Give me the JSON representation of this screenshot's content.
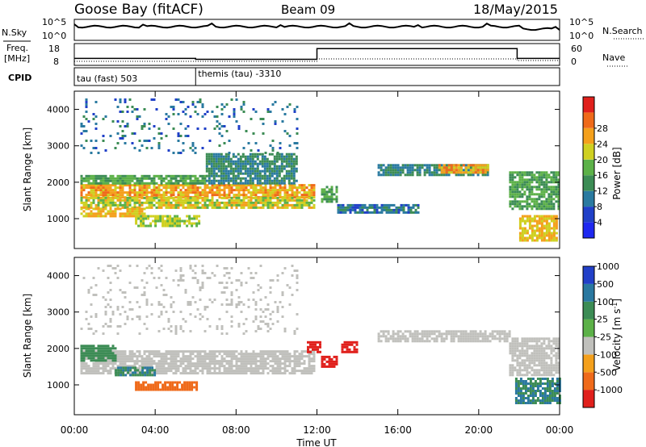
{
  "header": {
    "station": "Goose Bay (fitACF)",
    "beam": "Beam 09",
    "date": "18/May/2015"
  },
  "noise_panel": {
    "left_label": "N.Sky",
    "right_label": "N.Search",
    "left_ticks": [
      "10^5",
      "10^0"
    ],
    "right_ticks": [
      "10^5",
      "10^0"
    ]
  },
  "freq_panel": {
    "left_label_line1": "Freq.",
    "left_label_line2": "[MHz]",
    "right_label": "Nave",
    "left_ticks": [
      "18",
      "8"
    ],
    "right_ticks": [
      "60",
      "0"
    ]
  },
  "cpid_panel": {
    "label": "CPID",
    "modes": [
      {
        "name": "tau (fast) 503",
        "start_hour": 0
      },
      {
        "name": "themis (tau) -3310",
        "start_hour": 6
      }
    ]
  },
  "axes": {
    "ylabel": "Slant Range [km]",
    "xlabel": "Time UT",
    "y_ticks": [
      "1000",
      "2000",
      "3000",
      "4000"
    ],
    "x_ticks": [
      "00:00",
      "04:00",
      "08:00",
      "12:00",
      "16:00",
      "20:00",
      "00:00"
    ]
  },
  "power_colorbar": {
    "title": "Power [dB]",
    "labels": [
      "4",
      "8",
      "12",
      "16",
      "20",
      "24",
      "28"
    ],
    "colors": [
      "#1e28f0",
      "#2040c8",
      "#2a7aa0",
      "#3c8c55",
      "#5cb148",
      "#cfd021",
      "#f4a01c",
      "#ef6a1a",
      "#e0201c"
    ]
  },
  "velocity_colorbar": {
    "title": "Velocity [m s^-1]",
    "labels": [
      "1000",
      "500",
      "100",
      "25",
      "-25",
      "-100",
      "-500",
      "-1000"
    ],
    "colors": [
      "#2240c8",
      "#2a78a0",
      "#3c8c55",
      "#5cb148",
      "#c0c0bc",
      "#f4a01c",
      "#ef6a1a",
      "#e0201c"
    ]
  },
  "chart_data": {
    "type": "heatmap",
    "x_range_hours": [
      0,
      24
    ],
    "y_range_km": [
      180,
      4500
    ],
    "power_regions": [
      {
        "t0": 0.3,
        "t1": 11.9,
        "r0": 1600,
        "r1": 1950,
        "dB": 24
      },
      {
        "t0": 0.3,
        "t1": 11.9,
        "r0": 1300,
        "r1": 1600,
        "dB": 20
      },
      {
        "t0": 0.3,
        "t1": 6.5,
        "r0": 1950,
        "r1": 2200,
        "dB": 14
      },
      {
        "t0": 0.3,
        "t1": 3.5,
        "r0": 1100,
        "r1": 1300,
        "dB": 22
      },
      {
        "t0": 3.0,
        "t1": 6.2,
        "r0": 800,
        "r1": 1100,
        "dB": 18
      },
      {
        "t0": 6.5,
        "t1": 11.0,
        "r0": 2000,
        "r1": 2800,
        "dB": 10
      },
      {
        "t0": 12.2,
        "t1": 13.0,
        "r0": 1500,
        "r1": 1900,
        "dB": 14
      },
      {
        "t0": 15.0,
        "t1": 20.5,
        "r0": 2200,
        "r1": 2500,
        "dB": 10
      },
      {
        "t0": 18.0,
        "t1": 20.5,
        "r0": 2300,
        "r1": 2500,
        "dB": 24
      },
      {
        "t0": 13.0,
        "t1": 17.0,
        "r0": 1200,
        "r1": 1400,
        "dB": 8
      },
      {
        "t0": 21.5,
        "t1": 24.0,
        "r0": 1300,
        "r1": 2300,
        "dB": 14
      },
      {
        "t0": 22.0,
        "t1": 23.8,
        "r0": 400,
        "r1": 1100,
        "dB": 22
      },
      {
        "t0": 0.3,
        "t1": 11.0,
        "r0": 2800,
        "r1": 4300,
        "dB": 8
      }
    ],
    "velocity_regions": [
      {
        "t0": 0.3,
        "t1": 11.9,
        "r0": 1300,
        "r1": 1950,
        "v": 0
      },
      {
        "t0": 0.3,
        "t1": 2.0,
        "r0": 1700,
        "r1": 2100,
        "v": 150
      },
      {
        "t0": 2.0,
        "t1": 4.0,
        "r0": 1300,
        "r1": 1500,
        "v": 300
      },
      {
        "t0": 3.0,
        "t1": 6.0,
        "r0": 900,
        "r1": 1100,
        "v": -150
      },
      {
        "t0": 11.5,
        "t1": 12.2,
        "r0": 1900,
        "r1": 2200,
        "v": -600
      },
      {
        "t0": 12.2,
        "t1": 13.0,
        "r0": 1500,
        "r1": 1800,
        "v": -800
      },
      {
        "t0": 13.2,
        "t1": 14.0,
        "r0": 1900,
        "r1": 2200,
        "v": -700
      },
      {
        "t0": 15.0,
        "t1": 21.5,
        "r0": 2200,
        "r1": 2500,
        "v": 0
      },
      {
        "t0": 21.5,
        "t1": 24.0,
        "r0": 1300,
        "r1": 2300,
        "v": 0
      },
      {
        "t0": 21.8,
        "t1": 24.0,
        "r0": 500,
        "r1": 1200,
        "v": 300
      },
      {
        "t0": 0.3,
        "t1": 11.0,
        "r0": 2400,
        "r1": 4300,
        "v": 0
      }
    ]
  }
}
